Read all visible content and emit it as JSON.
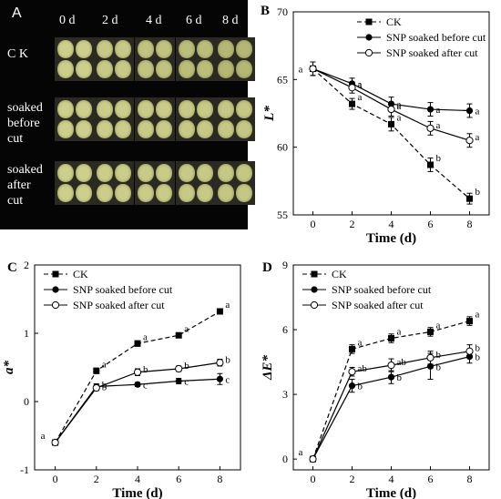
{
  "photo_panel": {
    "letter": "A",
    "days": [
      "0 d",
      "2 d",
      "4 d",
      "6 d",
      "8 d"
    ],
    "rows": [
      "C K",
      "soaked\nbefore\ncut",
      "soaked\nafter\ncut"
    ]
  },
  "chart_data": [
    {
      "panel": "B",
      "type": "line",
      "title": "",
      "xlabel": "Time (d)",
      "ylabel": "L*",
      "x": [
        0,
        2,
        4,
        6,
        8
      ],
      "xlim": [
        -1,
        9
      ],
      "ylim": [
        55,
        70
      ],
      "yticks": [
        55,
        60,
        65,
        70
      ],
      "legend_position": "top-right",
      "series": [
        {
          "name": "CK",
          "values": [
            65.8,
            63.2,
            61.7,
            58.7,
            56.2
          ],
          "errors": [
            0.5,
            0.4,
            0.5,
            0.5,
            0.4
          ],
          "letters": [
            "",
            "a",
            "a",
            "b",
            "b"
          ],
          "marker": "square",
          "dash": true,
          "color": "#000000"
        },
        {
          "name": "SNP soaked before cut",
          "values": [
            65.8,
            64.7,
            63.2,
            62.8,
            62.7
          ],
          "errors": [
            0.5,
            0.4,
            0.5,
            0.5,
            0.5
          ],
          "letters": [
            "a",
            "a",
            "a",
            "a",
            "a"
          ],
          "marker": "filled-circle",
          "dash": false,
          "color": "#000000"
        },
        {
          "name": "SNP soaked after cut",
          "values": [
            65.8,
            64.4,
            62.8,
            61.4,
            60.5
          ],
          "errors": [
            0.5,
            0.4,
            0.5,
            0.5,
            0.5
          ],
          "letters": [
            "",
            "a",
            "a",
            "a",
            "a"
          ],
          "marker": "open-circle",
          "dash": false,
          "color": "#000000"
        }
      ]
    },
    {
      "panel": "C",
      "type": "line",
      "title": "",
      "xlabel": "Time (d)",
      "ylabel": "a*",
      "x": [
        0,
        2,
        4,
        6,
        8
      ],
      "xlim": [
        -1,
        9
      ],
      "ylim": [
        -1,
        2
      ],
      "yticks": [
        -1,
        0,
        1,
        2
      ],
      "legend_position": "top-left",
      "series": [
        {
          "name": "CK",
          "values": [
            -0.6,
            0.45,
            0.85,
            0.97,
            1.32
          ],
          "errors": [
            0.04,
            0.04,
            0.04,
            0.03,
            0.03
          ],
          "letters": [
            "a",
            "a",
            "a",
            "a",
            "a"
          ],
          "marker": "square",
          "dash": true,
          "color": "#000000"
        },
        {
          "name": "SNP soaked before cut",
          "values": [
            -0.6,
            0.22,
            0.25,
            0.3,
            0.33
          ],
          "errors": [
            0.04,
            0.04,
            0.03,
            0.04,
            0.08
          ],
          "letters": [
            "",
            "b",
            "c",
            "c",
            "c"
          ],
          "marker": "filled-circle",
          "dash": false,
          "color": "#000000"
        },
        {
          "name": "SNP soaked after cut",
          "values": [
            -0.6,
            0.2,
            0.43,
            0.48,
            0.57
          ],
          "errors": [
            0.04,
            0.04,
            0.05,
            0.04,
            0.05
          ],
          "letters": [
            "",
            "b",
            "b",
            "b",
            "b"
          ],
          "marker": "open-circle",
          "dash": false,
          "color": "#000000"
        }
      ]
    },
    {
      "panel": "D",
      "type": "line",
      "title": "",
      "xlabel": "Time (d)",
      "ylabel": "ΔE*",
      "x": [
        0,
        2,
        4,
        6,
        8
      ],
      "xlim": [
        -1,
        9
      ],
      "ylim": [
        -0.5,
        9
      ],
      "yticks": [
        0,
        3,
        6,
        9
      ],
      "legend_position": "top-left",
      "series": [
        {
          "name": "CK",
          "values": [
            0,
            5.1,
            5.6,
            5.9,
            6.4
          ],
          "errors": [
            0.1,
            0.2,
            0.2,
            0.2,
            0.2
          ],
          "letters": [
            "a",
            "a",
            "a",
            "a",
            "a"
          ],
          "marker": "square",
          "dash": true,
          "color": "#000000"
        },
        {
          "name": "SNP soaked  before cut",
          "values": [
            0,
            3.4,
            3.8,
            4.3,
            4.75
          ],
          "errors": [
            0.1,
            0.3,
            0.3,
            0.6,
            0.3
          ],
          "letters": [
            "",
            "b",
            "b",
            "b",
            "b"
          ],
          "marker": "filled-circle",
          "dash": false,
          "color": "#000000"
        },
        {
          "name": "SNP soaked  after cut",
          "values": [
            0,
            4.05,
            4.35,
            4.7,
            5.0
          ],
          "errors": [
            0.1,
            0.2,
            0.3,
            0.3,
            0.3
          ],
          "letters": [
            "",
            "ab",
            "ab",
            "b",
            "b"
          ],
          "marker": "open-circle",
          "dash": false,
          "color": "#000000"
        }
      ]
    }
  ]
}
